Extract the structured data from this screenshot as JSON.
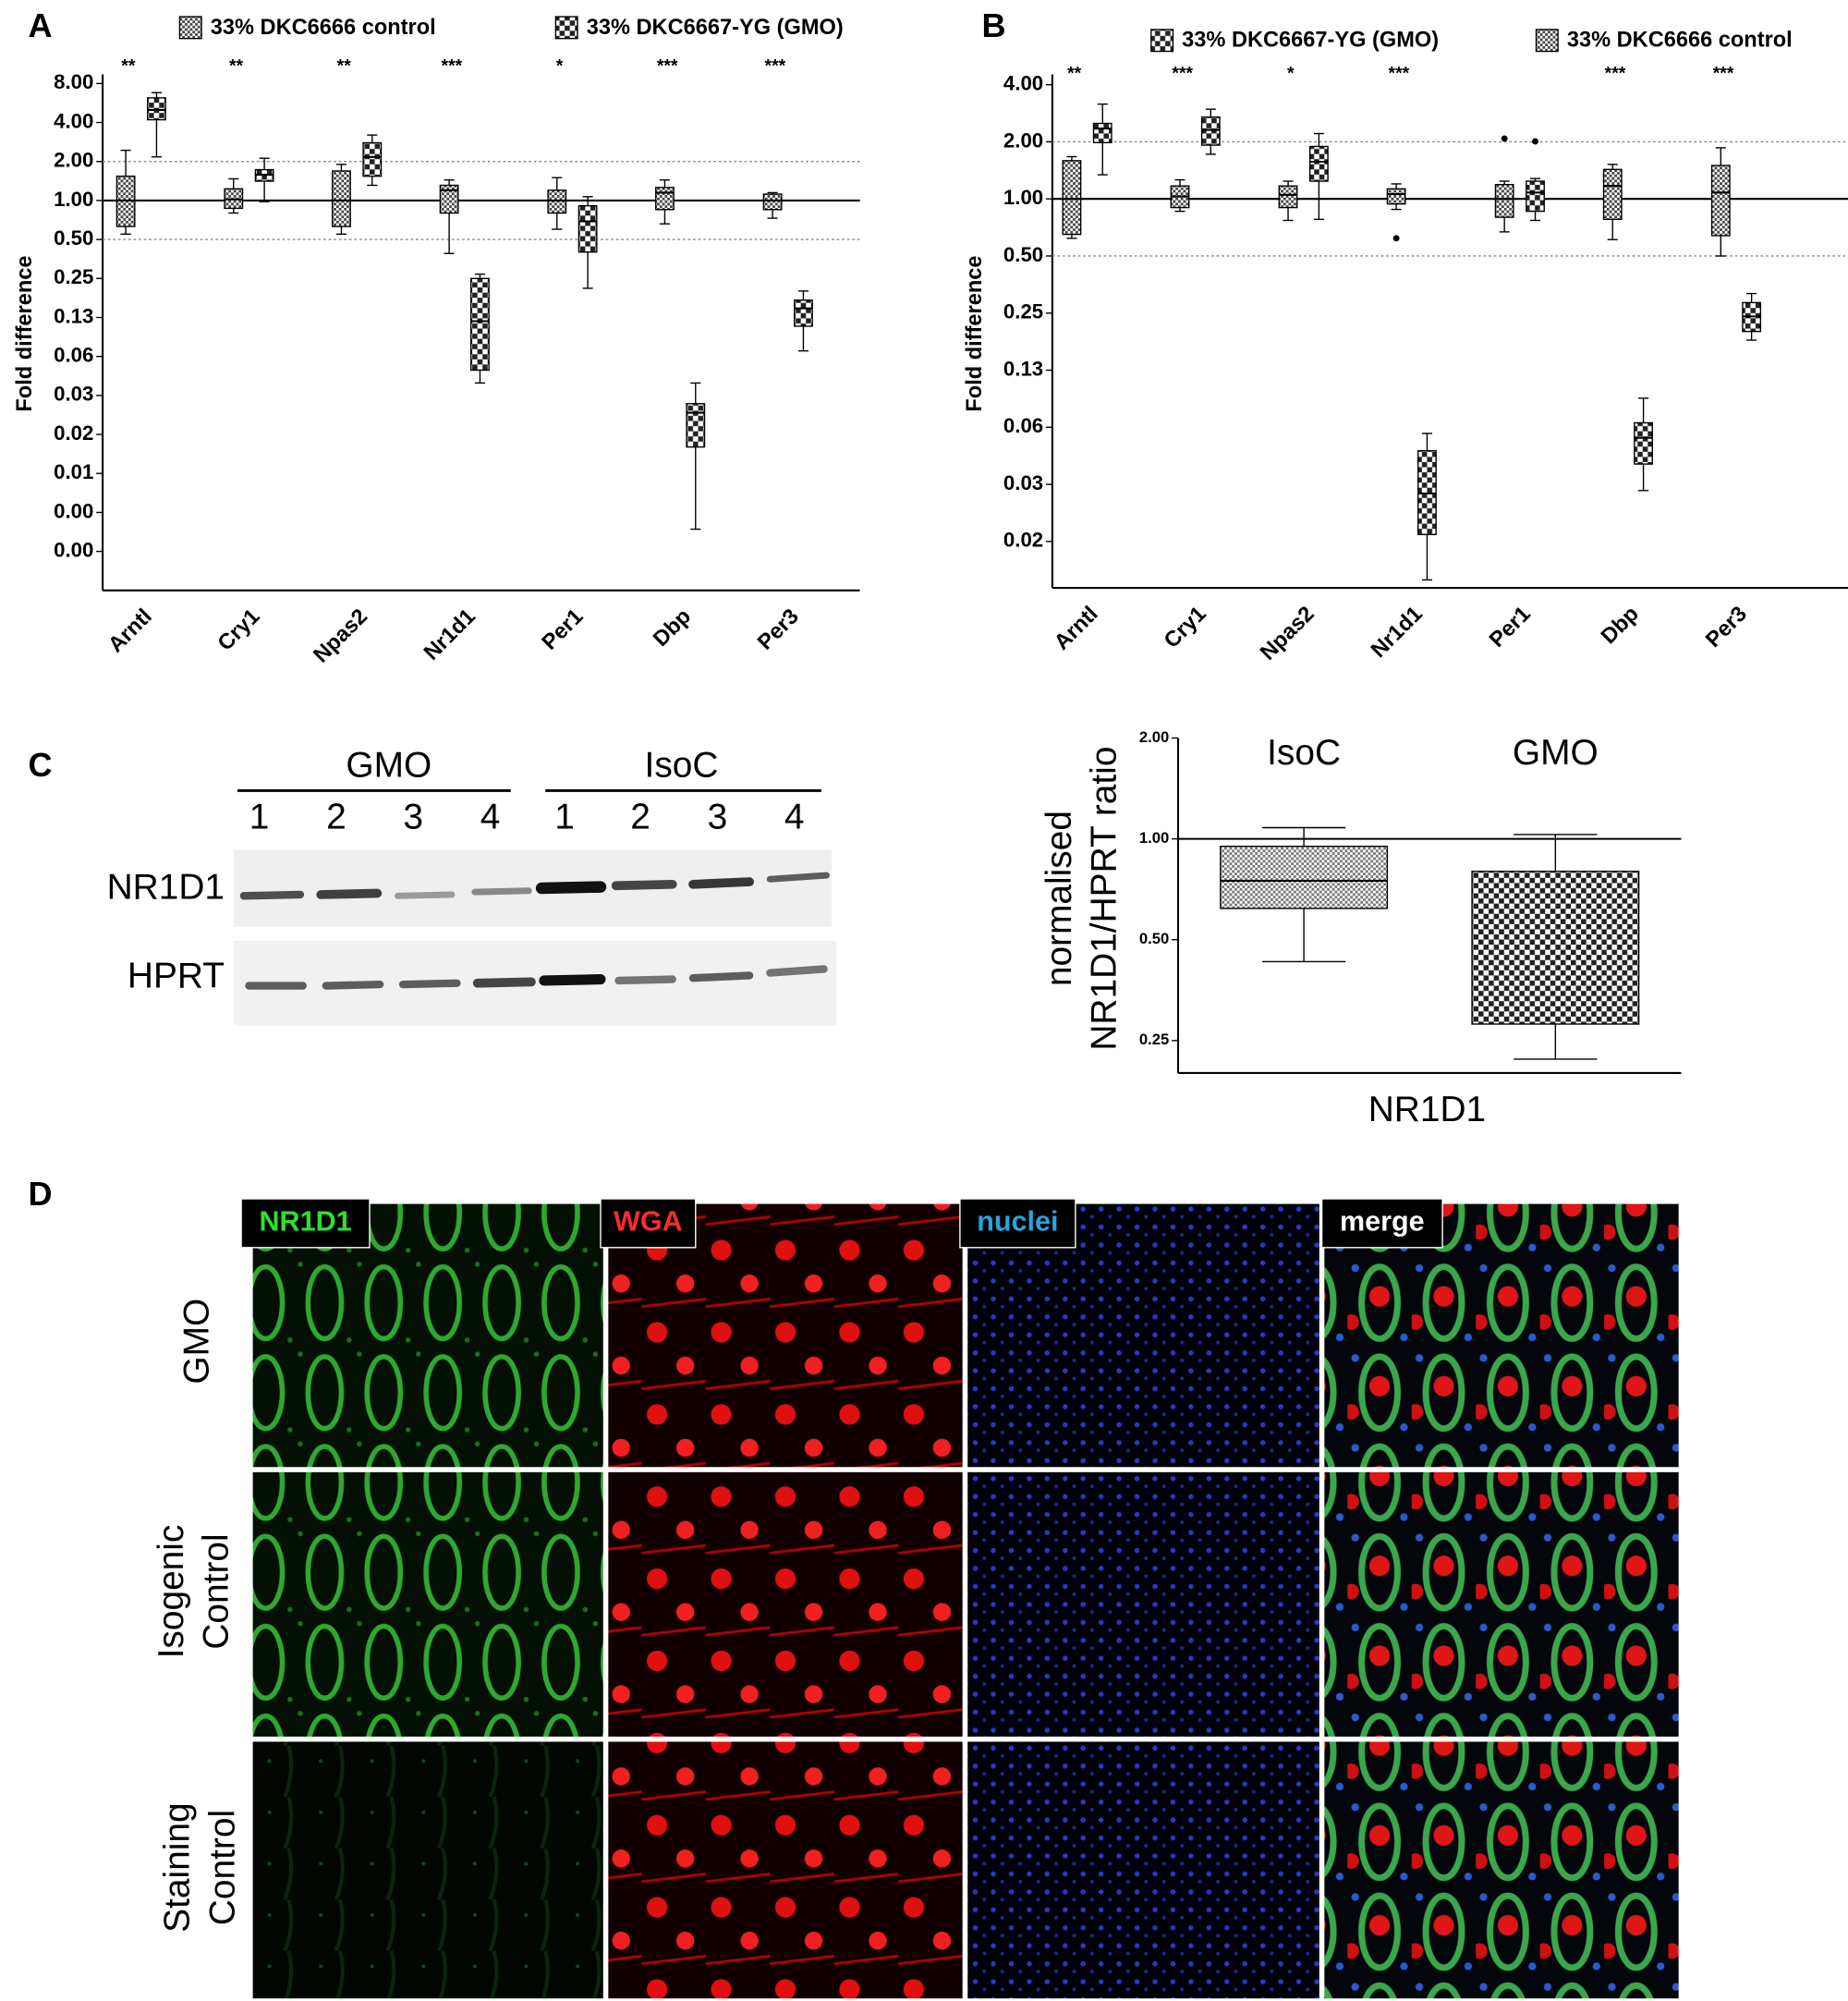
{
  "panel_labels": [
    "A",
    "B",
    "C",
    "D"
  ],
  "chart_data": [
    {
      "type": "box",
      "y_label": "Fold difference",
      "log_scale": true,
      "categories": [
        "Arntl",
        "Cry1",
        "Npas2",
        "Nr1d1",
        "Per1",
        "Dbp",
        "Per3"
      ],
      "annotations": [
        "**",
        "**",
        "**",
        "***",
        "*",
        "***",
        "***"
      ],
      "ylim": [
        0.0009765625,
        9.4
      ],
      "yticks": [
        {
          "value": 8,
          "label": "8.00"
        },
        {
          "value": 4,
          "label": "4.00"
        },
        {
          "value": 2,
          "label": "2.00"
        },
        {
          "value": 1,
          "label": "1.00"
        },
        {
          "value": 0.5,
          "label": "0.50"
        },
        {
          "value": 0.25,
          "label": "0.25"
        },
        {
          "value": 0.125,
          "label": "0.13"
        },
        {
          "value": 0.0625,
          "label": "0.06"
        },
        {
          "value": 0.03125,
          "label": "0.03"
        },
        {
          "value": 0.015625,
          "label": "0.02"
        },
        {
          "value": 0.0078125,
          "label": "0.01"
        },
        {
          "value": 0.00390625,
          "label": "0.00"
        },
        {
          "value": 0.001953125,
          "label": "0.00"
        }
      ],
      "reference_lines": [
        {
          "value": 1,
          "style": "solid"
        },
        {
          "value": 2,
          "style": "dotted"
        },
        {
          "value": 0.5,
          "style": "dotted"
        }
      ],
      "series": [
        {
          "name": "33% DKC6666 control",
          "color": "#444444",
          "pattern": "fine",
          "values": [
            {
              "min": 0.55,
              "q1": 0.63,
              "median": 1,
              "q3": 1.54,
              "max": 2.44
            },
            {
              "min": 0.8,
              "q1": 0.87,
              "median": 1.02,
              "q3": 1.23,
              "max": 1.47
            },
            {
              "min": 0.55,
              "q1": 0.63,
              "median": 1,
              "q3": 1.69,
              "max": 1.9
            },
            {
              "min": 0.39,
              "q1": 0.8,
              "median": 1.2,
              "q3": 1.31,
              "max": 1.44
            },
            {
              "min": 0.6,
              "q1": 0.8,
              "median": 1,
              "q3": 1.2,
              "max": 1.5
            },
            {
              "min": 0.66,
              "q1": 0.85,
              "median": 1.15,
              "q3": 1.26,
              "max": 1.44
            },
            {
              "min": 0.73,
              "q1": 0.85,
              "median": 1,
              "q3": 1.12,
              "max": 1.15
            }
          ]
        },
        {
          "name": "33% DKC6667-YG (GMO)",
          "color": "#222222",
          "pattern": "checker",
          "values": [
            {
              "min": 2.17,
              "q1": 4.2,
              "median": 5.0,
              "q3": 6.2,
              "max": 6.8
            },
            {
              "min": 0.98,
              "q1": 1.41,
              "median": 1.58,
              "q3": 1.73,
              "max": 2.12
            },
            {
              "min": 1.31,
              "q1": 1.54,
              "median": 2.17,
              "q3": 2.79,
              "max": 3.2
            },
            {
              "min": 0.039,
              "q1": 0.049,
              "median": 0.117,
              "q3": 0.25,
              "max": 0.27
            },
            {
              "min": 0.21,
              "q1": 0.4,
              "median": 0.69,
              "q3": 0.91,
              "max": 1.07
            },
            {
              "min": 0.0029,
              "q1": 0.0125,
              "median": 0.023,
              "q3": 0.027,
              "max": 0.039
            },
            {
              "min": 0.069,
              "q1": 0.107,
              "median": 0.147,
              "q3": 0.17,
              "max": 0.2
            }
          ]
        }
      ]
    },
    {
      "type": "box",
      "y_label": "Fold difference",
      "log_scale": true,
      "categories": [
        "Arntl",
        "Cry1",
        "Npas2",
        "Nr1d1",
        "Per1",
        "Dbp",
        "Per3"
      ],
      "annotations": [
        "**",
        "***",
        "*",
        "***",
        null,
        "***",
        "***"
      ],
      "ylim": [
        0.0089,
        4.53
      ],
      "yticks": [
        {
          "value": 4,
          "label": "4.00"
        },
        {
          "value": 2,
          "label": "2.00"
        },
        {
          "value": 1,
          "label": "1.00"
        },
        {
          "value": 0.5,
          "label": "0.50"
        },
        {
          "value": 0.25,
          "label": "0.25"
        },
        {
          "value": 0.125,
          "label": "0.13"
        },
        {
          "value": 0.0625,
          "label": "0.06"
        },
        {
          "value": 0.03125,
          "label": "0.03"
        },
        {
          "value": 0.015625,
          "label": "0.02"
        }
      ],
      "reference_lines": [
        {
          "value": 1,
          "style": "solid"
        },
        {
          "value": 2,
          "style": "dotted"
        },
        {
          "value": 0.5,
          "style": "dotted"
        }
      ],
      "series": [
        {
          "name": "33% DKC6666 control",
          "color": "#444444",
          "pattern": "fine",
          "values": [
            {
              "min": 0.62,
              "q1": 0.65,
              "median": 1,
              "q3": 1.59,
              "max": 1.67
            },
            {
              "min": 0.86,
              "q1": 0.9,
              "median": 1.03,
              "q3": 1.17,
              "max": 1.26
            },
            {
              "min": 0.77,
              "q1": 0.9,
              "median": 1.05,
              "q3": 1.17,
              "max": 1.24
            },
            {
              "min": 0.88,
              "q1": 0.94,
              "median": 1.06,
              "q3": 1.13,
              "max": 1.2
            },
            {
              "min": 0.67,
              "q1": 0.8,
              "median": 1,
              "q3": 1.19,
              "max": 1.24
            },
            {
              "min": 0.61,
              "q1": 0.78,
              "median": 1.17,
              "q3": 1.43,
              "max": 1.52
            },
            {
              "min": 0.5,
              "q1": 0.64,
              "median": 1.08,
              "q3": 1.5,
              "max": 1.86
            }
          ],
          "outliers": [
            null,
            null,
            null,
            [
              0.62
            ],
            [
              2.08
            ],
            null,
            null
          ]
        },
        {
          "name": "33% DKC6667-YG (GMO)",
          "color": "#222222",
          "pattern": "checker",
          "values": [
            {
              "min": 1.34,
              "q1": 1.98,
              "median": 2.35,
              "q3": 2.5,
              "max": 3.16
            },
            {
              "min": 1.72,
              "q1": 1.92,
              "median": 2.31,
              "q3": 2.7,
              "max": 2.97
            },
            {
              "min": 0.78,
              "q1": 1.24,
              "median": 1.57,
              "q3": 1.89,
              "max": 2.21
            },
            {
              "min": 0.0098,
              "q1": 0.017,
              "median": 0.028,
              "q3": 0.047,
              "max": 0.058
            },
            {
              "min": 0.77,
              "q1": 0.86,
              "median": 1.08,
              "q3": 1.24,
              "max": 1.28
            },
            {
              "min": 0.029,
              "q1": 0.04,
              "median": 0.055,
              "q3": 0.066,
              "max": 0.089
            },
            {
              "min": 0.18,
              "q1": 0.2,
              "median": 0.24,
              "q3": 0.284,
              "max": 0.317
            }
          ],
          "outliers": [
            null,
            null,
            null,
            null,
            [
              2.01
            ],
            null,
            null
          ]
        }
      ]
    },
    {
      "type": "box",
      "y_label_lines": [
        "normalised",
        "NR1D1/HPRT ratio"
      ],
      "x_label": "NR1D1",
      "log_scale": true,
      "categories": [
        "IsoC",
        "GMO"
      ],
      "ylim": [
        0.2,
        2
      ],
      "yticks": [
        {
          "value": 2,
          "label": "2.00"
        },
        {
          "value": 1,
          "label": "1.00"
        },
        {
          "value": 0.5,
          "label": "0.50"
        },
        {
          "value": 0.25,
          "label": "0.25"
        }
      ],
      "reference_lines": [
        {
          "value": 1,
          "style": "solid"
        }
      ],
      "series": [
        {
          "color": "#777777",
          "pattern": "fine",
          "values": [
            {
              "min": 0.43,
              "q1": 0.62,
              "median": 0.75,
              "q3": 0.95,
              "max": 1.08
            },
            null
          ]
        },
        {
          "color": "#222222",
          "pattern": "checker",
          "values": [
            null,
            {
              "min": 0.22,
              "q1": 0.28,
              "median": null,
              "q3": 0.8,
              "max": 1.03
            }
          ]
        }
      ]
    }
  ],
  "blot": {
    "groups": [
      "GMO",
      "IsoC"
    ],
    "lanes": [
      "1",
      "2",
      "3",
      "4",
      "1",
      "2",
      "3",
      "4"
    ],
    "rows": [
      "NR1D1",
      "HPRT"
    ]
  },
  "staining": {
    "channels": [
      "NR1D1",
      "WGA",
      "nuclei",
      "merge"
    ],
    "rows": [
      [
        "GMO"
      ],
      [
        "Isogenic",
        "Control"
      ],
      [
        "Staining",
        "Control"
      ]
    ]
  }
}
